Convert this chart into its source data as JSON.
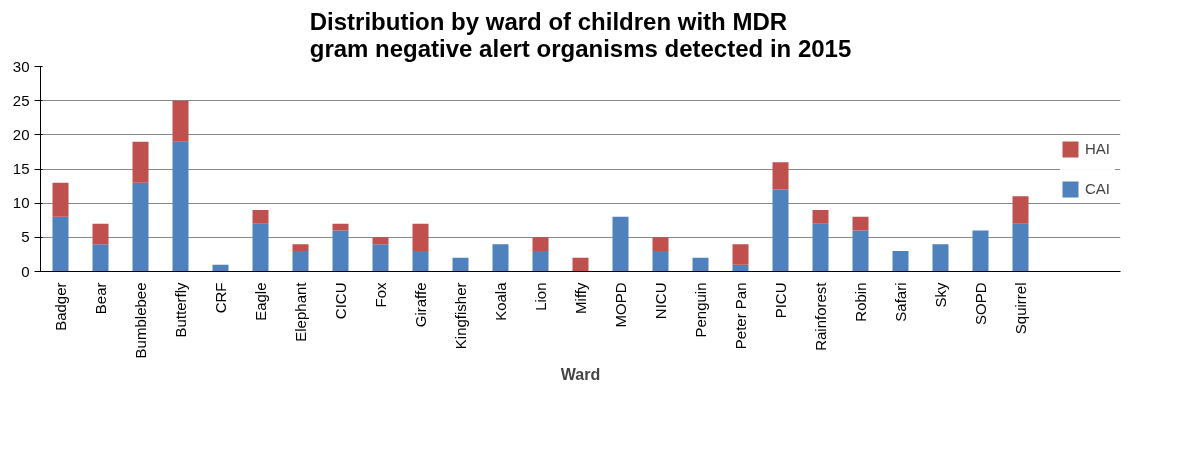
{
  "chart_data": {
    "type": "bar",
    "stacked": true,
    "title": "Distribution by ward of children with MDR\ngram negative alert organisms detected in 2015",
    "xlabel": "Ward",
    "categories": [
      "Badger",
      "Bear",
      "Bumblebee",
      "Butterfly",
      "CRF",
      "Eagle",
      "Elephant",
      "CICU",
      "Fox",
      "Giraffe",
      "Kingfisher",
      "Koala",
      "Lion",
      "Miffy",
      "MOPD",
      "NICU",
      "Penguin",
      "Peter Pan",
      "PICU",
      "Rainforest",
      "Robin",
      "Safari",
      "Sky",
      "SOPD",
      "Squirrel"
    ],
    "series": [
      {
        "name": "CAI",
        "color": "#4f81bd",
        "values": [
          8,
          4,
          13,
          19,
          1,
          7,
          3,
          6,
          4,
          3,
          2,
          4,
          3,
          0,
          8,
          3,
          2,
          1,
          12,
          7,
          6,
          3,
          4,
          6,
          7
        ]
      },
      {
        "name": "HAI",
        "color": "#c0504d",
        "values": [
          5,
          3,
          6,
          6,
          0,
          2,
          1,
          1,
          1,
          4,
          0,
          0,
          2,
          2,
          0,
          2,
          0,
          3,
          4,
          2,
          2,
          0,
          0,
          0,
          4
        ]
      }
    ],
    "ylim": [
      0,
      30
    ],
    "yticks": [
      0,
      5,
      10,
      15,
      20,
      25,
      30
    ],
    "grid": "y",
    "legend": "right"
  }
}
